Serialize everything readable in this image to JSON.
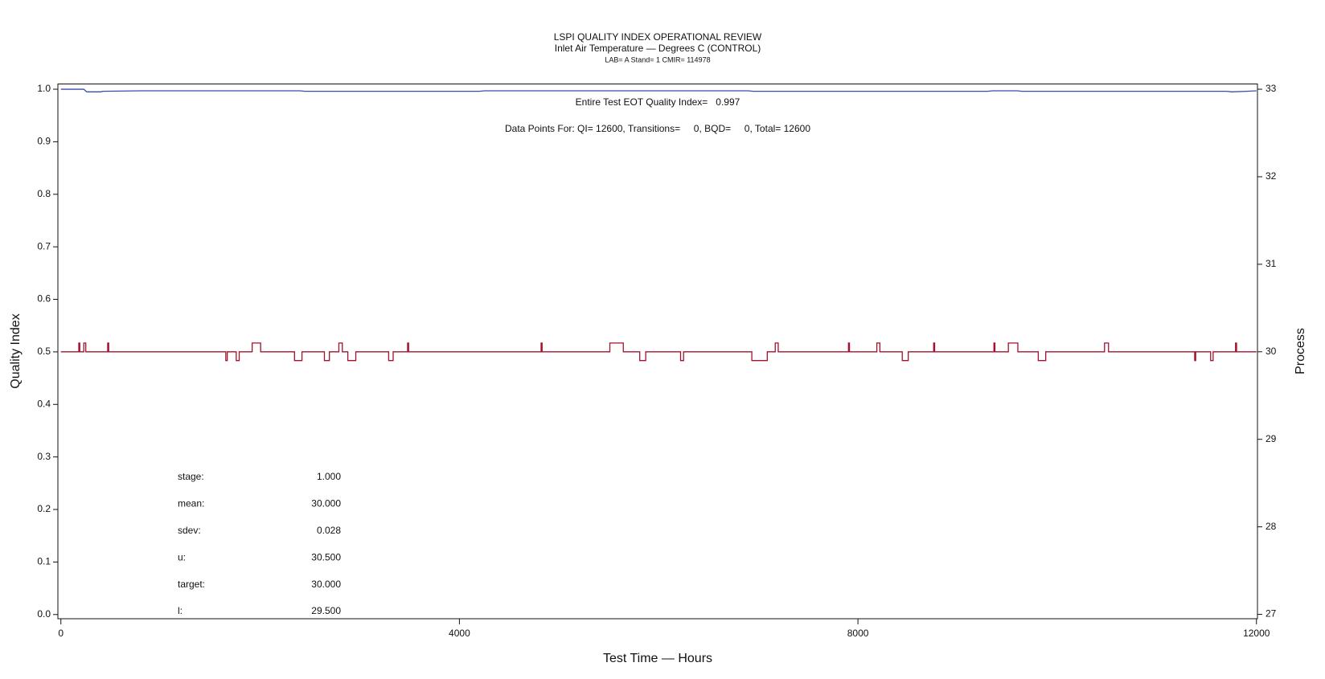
{
  "chart_data": {
    "type": "line",
    "title": "LSPI QUALITY INDEX OPERATIONAL REVIEW",
    "subtitle": "Inlet Air Temperature — Degrees C (CONTROL)",
    "subtitle2": "LAB= A Stand= 1 CMIR= 114978",
    "xlabel": "Test Time — Hours",
    "ylabel": "Quality Index",
    "y2label": "Process",
    "annotations": [
      "Entire Test EOT Quality Index=   0.997",
      "Data Points For: QI= 12600, Transitions=     0, BQD=     0, Total= 12600"
    ],
    "stats": [
      {
        "label": "stage:",
        "value": "1.000"
      },
      {
        "label": "mean:",
        "value": "30.000"
      },
      {
        "label": "sdev:",
        "value": "0.028"
      },
      {
        "label": "u:",
        "value": "30.500"
      },
      {
        "label": "target:",
        "value": "30.000"
      },
      {
        "label": "l:",
        "value": "29.500"
      }
    ],
    "xlim": [
      -30,
      12010
    ],
    "xticks": [
      0,
      4000,
      8000,
      12000
    ],
    "ylim": [
      -0.008,
      1.01
    ],
    "yticks": [
      {
        "value": 0,
        "label": "0.0"
      },
      0.1,
      0.2,
      0.3,
      0.4,
      0.5,
      0.6,
      0.7,
      0.8,
      0.9,
      {
        "value": 1,
        "label": "1.0"
      }
    ],
    "y2lim": [
      26.95,
      33.06
    ],
    "y2ticks": [
      27,
      28,
      29,
      30,
      31,
      32,
      33
    ],
    "series": [
      {
        "color": "#3a4ab0",
        "x": [
          0,
          230,
          260,
          400,
          420,
          800,
          2400,
          2450,
          4200,
          4250,
          6900,
          6950,
          9300,
          9350,
          9600,
          9650,
          11700,
          11750,
          11900,
          12000
        ],
        "values": [
          1.0,
          1.0,
          0.995,
          0.995,
          0.996,
          0.997,
          0.997,
          0.996,
          0.996,
          0.997,
          0.997,
          0.996,
          0.996,
          0.997,
          0.997,
          0.996,
          0.996,
          0.995,
          0.996,
          0.997
        ]
      },
      {
        "color": "#a3122c",
        "axis": "y2",
        "x": [
          0,
          180,
          180,
          190,
          190,
          230,
          230,
          250,
          250,
          470,
          470,
          480,
          480,
          1655,
          1655,
          1670,
          1670,
          1760,
          1760,
          1790,
          1790,
          1920,
          1920,
          2005,
          2005,
          2345,
          2345,
          2420,
          2420,
          2645,
          2645,
          2695,
          2695,
          2790,
          2790,
          2825,
          2825,
          2880,
          2880,
          2960,
          2960,
          3290,
          3290,
          3335,
          3335,
          3480,
          3480,
          3490,
          3490,
          4820,
          4820,
          4830,
          4830,
          5510,
          5510,
          5645,
          5645,
          5810,
          5810,
          5870,
          5870,
          6220,
          6220,
          6250,
          6250,
          6935,
          6935,
          7090,
          7090,
          7170,
          7170,
          7200,
          7200,
          7905,
          7905,
          7915,
          7915,
          8190,
          8190,
          8220,
          8220,
          8445,
          8445,
          8505,
          8505,
          8760,
          8760,
          8770,
          8770,
          9365,
          9365,
          9375,
          9375,
          9510,
          9510,
          9605,
          9605,
          9810,
          9810,
          9885,
          9885,
          10475,
          10475,
          10515,
          10515,
          11380,
          11380,
          11390,
          11390,
          11540,
          11540,
          11565,
          11565,
          11790,
          11790,
          11800,
          11800,
          12000
        ],
        "values": [
          30,
          30,
          30.1,
          30.1,
          30,
          30,
          30.1,
          30.1,
          30,
          30,
          30.1,
          30.1,
          30,
          30,
          29.9,
          29.9,
          30,
          30,
          29.9,
          29.9,
          30,
          30,
          30.1,
          30.1,
          30,
          30,
          29.9,
          29.9,
          30,
          30,
          29.9,
          29.9,
          30,
          30,
          30.1,
          30.1,
          30,
          30,
          29.9,
          29.9,
          30,
          30,
          29.9,
          29.9,
          30,
          30,
          30.1,
          30.1,
          30,
          30,
          30.1,
          30.1,
          30,
          30,
          30.1,
          30.1,
          30,
          30,
          29.9,
          29.9,
          30,
          30,
          29.9,
          29.9,
          30,
          30,
          29.9,
          29.9,
          30,
          30,
          30.1,
          30.1,
          30,
          30,
          30.1,
          30.1,
          30,
          30,
          30.1,
          30.1,
          30,
          30,
          29.9,
          29.9,
          30,
          30,
          30.1,
          30.1,
          30,
          30,
          30.1,
          30.1,
          30,
          30,
          30.1,
          30.1,
          30,
          30,
          29.9,
          29.9,
          30,
          30,
          30.1,
          30.1,
          30,
          30,
          29.9,
          29.9,
          30,
          30,
          29.9,
          29.9,
          30,
          30,
          30.1,
          30.1,
          30,
          30
        ]
      }
    ]
  }
}
